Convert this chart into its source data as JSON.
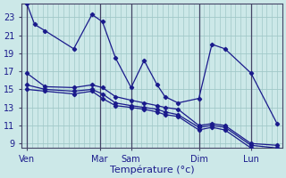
{
  "xlabel": "Température (°c)",
  "bg_color": "#cce8e8",
  "line_color": "#1a1a8c",
  "grid_color": "#a0c8c8",
  "vline_color": "#444466",
  "ylim": [
    8.5,
    24.5
  ],
  "xlim": [
    0,
    100
  ],
  "yticks": [
    9,
    11,
    13,
    15,
    17,
    19,
    21,
    23
  ],
  "xtick_positions": [
    2,
    30,
    42,
    68,
    88
  ],
  "xtick_labels": [
    "Ven",
    "Mar",
    "Sam",
    "Dim",
    "Lun"
  ],
  "vline_positions": [
    2,
    30,
    42,
    68,
    88
  ],
  "lines": [
    {
      "x": [
        2,
        5,
        9,
        20,
        27,
        31,
        36,
        42,
        47,
        52,
        55,
        60,
        68,
        73,
        78,
        88,
        98
      ],
      "y": [
        24.5,
        22.2,
        21.5,
        19.5,
        23.3,
        22.5,
        18.5,
        15.2,
        18.2,
        15.5,
        14.2,
        13.5,
        14.0,
        20.0,
        19.5,
        16.8,
        11.2
      ]
    },
    {
      "x": [
        2,
        9,
        20,
        27,
        31,
        36,
        42,
        47,
        52,
        55,
        60,
        68,
        73,
        78,
        88,
        98
      ],
      "y": [
        16.8,
        15.3,
        15.2,
        15.5,
        15.2,
        14.2,
        13.8,
        13.5,
        13.2,
        13.0,
        12.8,
        11.0,
        11.2,
        11.0,
        9.0,
        8.8
      ]
    },
    {
      "x": [
        2,
        9,
        20,
        27,
        31,
        36,
        42,
        47,
        52,
        55,
        60,
        68,
        73,
        78,
        88,
        98
      ],
      "y": [
        15.5,
        15.0,
        14.8,
        15.0,
        14.5,
        13.5,
        13.2,
        13.0,
        12.8,
        12.5,
        12.2,
        10.8,
        11.0,
        10.8,
        8.8,
        8.5
      ]
    },
    {
      "x": [
        2,
        9,
        20,
        27,
        31,
        36,
        42,
        47,
        52,
        55,
        60,
        68,
        73,
        78,
        88,
        98
      ],
      "y": [
        15.0,
        14.8,
        14.5,
        14.8,
        14.0,
        13.2,
        13.0,
        12.8,
        12.5,
        12.2,
        12.0,
        10.5,
        10.8,
        10.5,
        8.5,
        8.2
      ]
    }
  ]
}
